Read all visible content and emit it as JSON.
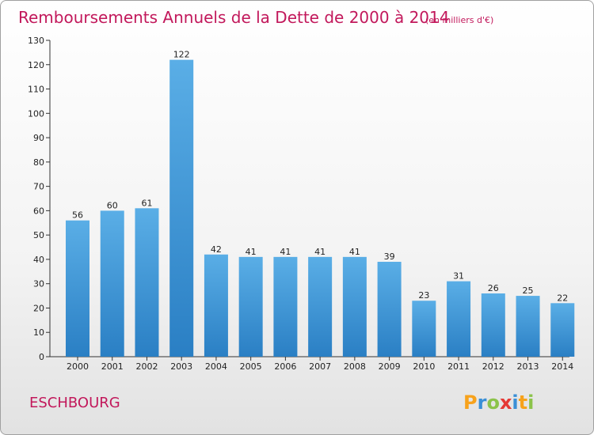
{
  "chart_data": {
    "type": "bar",
    "title": "Remboursements Annuels de la Dette de 2000 à 2014",
    "subtitle": "(en milliers d'€)",
    "categories": [
      "2000",
      "2001",
      "2002",
      "2003",
      "2004",
      "2005",
      "2006",
      "2007",
      "2008",
      "2009",
      "2010",
      "2011",
      "2012",
      "2013",
      "2014"
    ],
    "values": [
      56,
      60,
      61,
      122,
      42,
      41,
      41,
      41,
      41,
      39,
      23,
      31,
      26,
      25,
      22
    ],
    "ylim": [
      0,
      130
    ],
    "yticks": [
      0,
      10,
      20,
      30,
      40,
      50,
      60,
      70,
      80,
      90,
      100,
      110,
      120,
      130
    ],
    "xlabel": "",
    "ylabel": "",
    "grid": false,
    "bar_color_top": "#5aaee6",
    "bar_color_bottom": "#2a7fc4"
  },
  "footer": {
    "commune": "ESCHBOURG",
    "logo_letters": [
      "P",
      "r",
      "o",
      "x",
      "i",
      "t",
      "i"
    ],
    "logo_colors": [
      "#f7a21b",
      "#3a8fd6",
      "#8bc34a",
      "#e53935",
      "#3a8fd6",
      "#f7a21b",
      "#8bc34a"
    ]
  }
}
